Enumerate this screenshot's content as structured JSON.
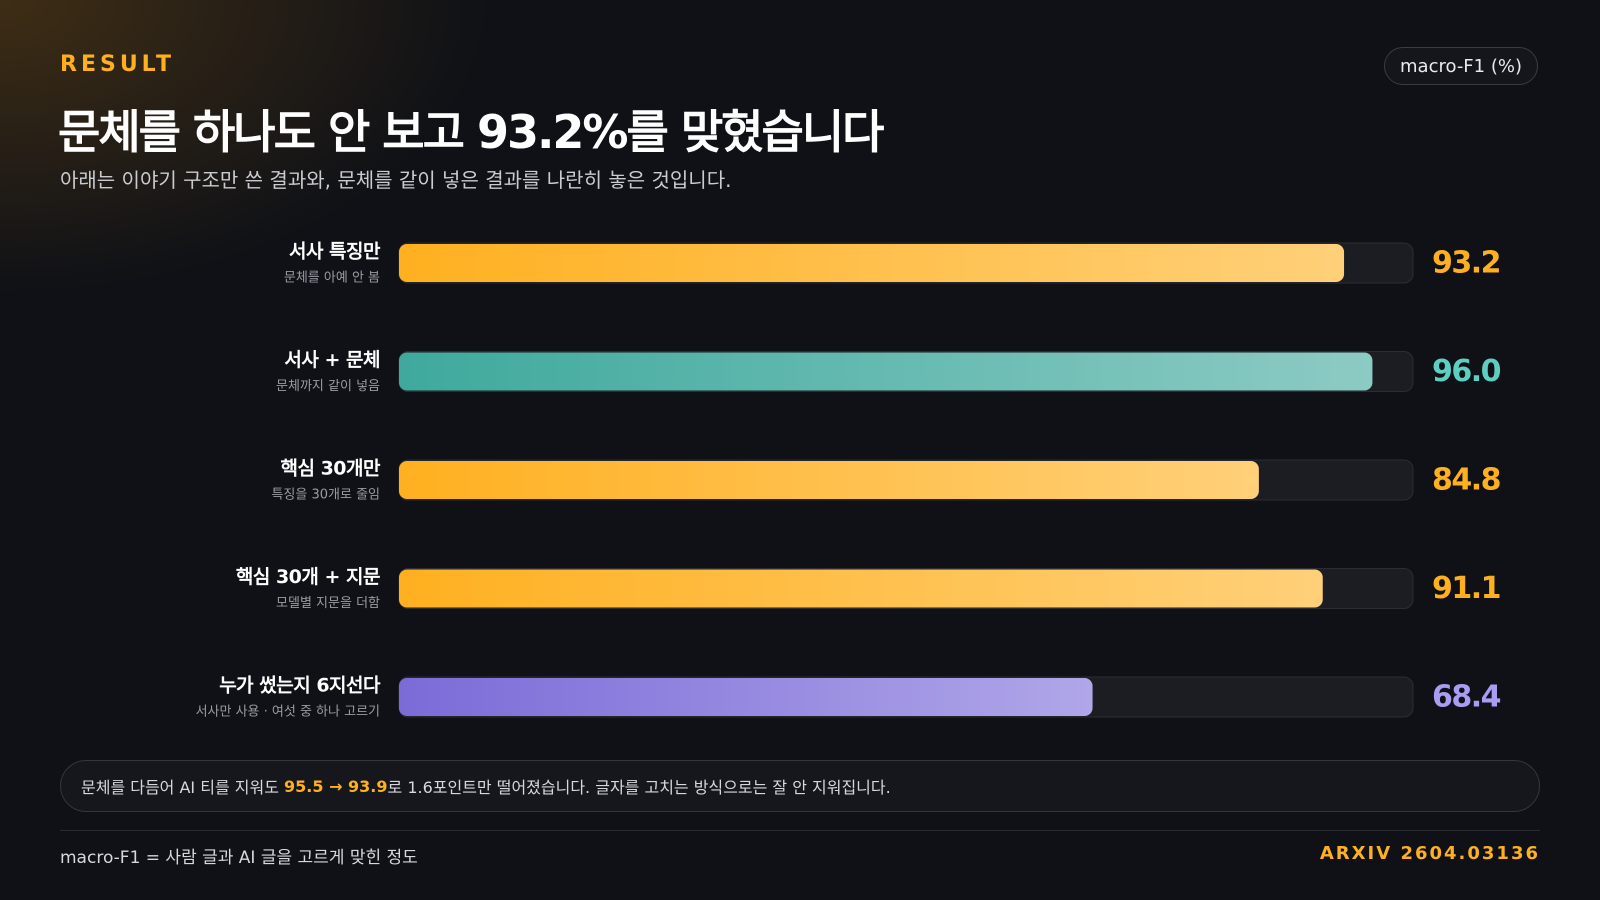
{
  "eyebrow": "RESULT",
  "badge": "macro-F1 (%)",
  "chart_data": {
    "type": "bar",
    "orientation": "horizontal",
    "title": "문체를 하나도 안 보고 93.2%를 맞혔습니다",
    "subtitle": "아래는 이야기 구조만 쓴 결과와, 문체를 같이 넣은 결과를 나란히 놓은 것입니다.",
    "categories": [
      "서사 특징만",
      "서사 + 문체",
      "핵심 30개만",
      "핵심 30개 + 지문",
      "누가 썼는지 6지선다"
    ],
    "category_notes": [
      "문체를 아예 안 봄",
      "문체까지 같이 넣음",
      "특징을 30개로 줄임",
      "모델별 지문을 더함",
      "서사만 사용 · 여섯 중 하나 고르기"
    ],
    "values": [
      93.2,
      96.0,
      84.8,
      91.1,
      68.4
    ],
    "value_labels": [
      "93.2",
      "96.0",
      "84.8",
      "91.1",
      "68.4"
    ],
    "colors": [
      "#ffb020",
      "#3fa99d",
      "#ffb020",
      "#ffb020",
      "#7b6bd8"
    ],
    "label_colors": [
      "#ffb020",
      "#5ccfc0",
      "#ffb020",
      "#ffb020",
      "#a99cf2"
    ],
    "xlim": [
      0,
      100
    ]
  },
  "note": {
    "before": "문체를 다듬어 AI 티를 지워도 ",
    "highlight": "95.5 → 93.9",
    "after": "로 1.6포인트만 떨어졌습니다. 글자를 고치는 방식으로는 잘 안 지워집니다."
  },
  "footer": {
    "left": "macro-F1 = 사람 글과 AI 글을 고르게 맞힌 정도",
    "right": "ARXIV 2604.03136"
  }
}
